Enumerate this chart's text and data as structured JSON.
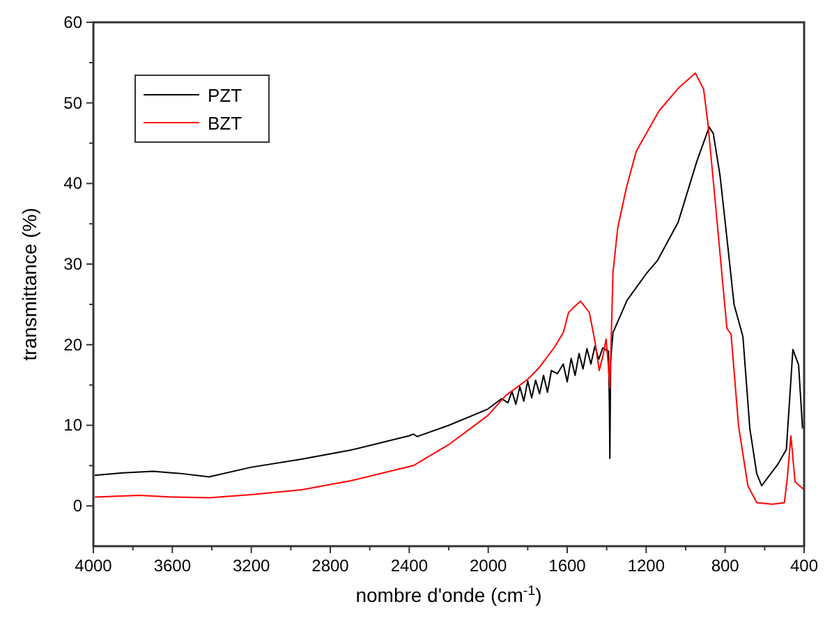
{
  "chart_data": {
    "type": "line",
    "xlabel": "nombre d'onde (cm$^{-1}$)",
    "ylabel": "transmittance (%)",
    "xlim": [
      4000,
      400
    ],
    "ylim": [
      -5,
      60
    ],
    "xticks": [
      4000,
      3600,
      3200,
      2800,
      2400,
      2000,
      1600,
      1200,
      800,
      400
    ],
    "yticks": [
      0,
      10,
      20,
      30,
      40,
      50,
      60
    ],
    "grid": false,
    "legend": "top left",
    "series": [
      {
        "name": "PZT",
        "color": "#000000",
        "x": [
          3993,
          3850,
          3697,
          3550,
          3414,
          3200,
          2944,
          2700,
          2400,
          2379,
          2360,
          2200,
          2003,
          1932,
          1900,
          1880,
          1860,
          1840,
          1820,
          1800,
          1780,
          1760,
          1740,
          1720,
          1700,
          1680,
          1650,
          1620,
          1600,
          1580,
          1560,
          1540,
          1520,
          1500,
          1480,
          1460,
          1440,
          1420,
          1391,
          1386,
          1384,
          1380,
          1368,
          1297,
          1200,
          1144,
          1038,
          944,
          881,
          860,
          826,
          790,
          755,
          710,
          675,
          640,
          615,
          575,
          535,
          490,
          457,
          428,
          408
        ],
        "values": [
          3.8,
          4.1,
          4.3,
          4.0,
          3.6,
          4.8,
          5.8,
          6.9,
          8.7,
          8.9,
          8.6,
          10.0,
          12.0,
          13.3,
          12.8,
          14.2,
          12.6,
          14.8,
          13.0,
          15.5,
          13.4,
          15.6,
          13.9,
          16.2,
          14.1,
          16.8,
          16.4,
          17.6,
          15.4,
          18.3,
          16.2,
          18.9,
          17.0,
          19.5,
          17.6,
          19.8,
          18.2,
          19.6,
          19.2,
          12.0,
          5.9,
          18.0,
          21.5,
          25.5,
          28.8,
          30.4,
          35.2,
          42.7,
          47.0,
          46.2,
          41.0,
          33.0,
          25.0,
          21.0,
          9.6,
          4.0,
          2.5,
          3.8,
          5.1,
          7.0,
          19.4,
          17.5,
          9.6
        ]
      },
      {
        "name": "BZT",
        "color": "#ff0000",
        "x": [
          3993,
          3767,
          3600,
          3414,
          3200,
          2944,
          2700,
          2379,
          2200,
          2003,
          1911,
          1800,
          1744,
          1664,
          1620,
          1593,
          1560,
          1532,
          1488,
          1460,
          1438,
          1420,
          1403,
          1390,
          1384,
          1368,
          1344,
          1300,
          1250,
          1135,
          1038,
          951,
          909,
          888,
          853,
          791,
          770,
          732,
          685,
          640,
          560,
          500,
          485,
          467,
          446,
          400
        ],
        "values": [
          1.1,
          1.3,
          1.1,
          1.0,
          1.4,
          2.0,
          3.1,
          5.0,
          7.6,
          11.2,
          13.7,
          15.7,
          17.1,
          19.7,
          21.5,
          24.0,
          24.8,
          25.4,
          24.0,
          20.5,
          16.8,
          18.5,
          20.7,
          17.0,
          14.6,
          29.0,
          34.5,
          39.5,
          44.0,
          49.0,
          51.8,
          53.7,
          51.7,
          47.6,
          38.5,
          22.0,
          21.3,
          9.9,
          2.5,
          0.4,
          0.2,
          0.4,
          3.5,
          8.7,
          3.0,
          2.0
        ]
      }
    ]
  }
}
